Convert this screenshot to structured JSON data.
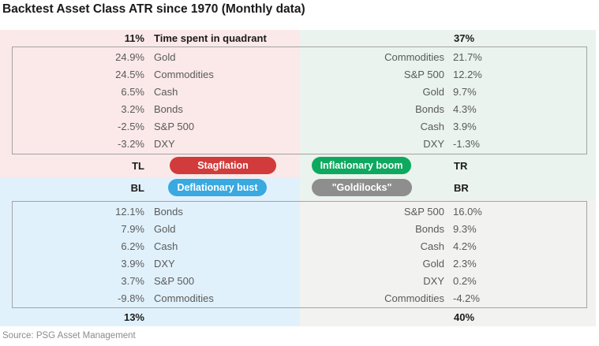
{
  "title": "Backtest Asset Class ATR since 1970 (Monthly data)",
  "source": "Source: PSG Asset Management",
  "header": {
    "left_pct": "11%",
    "label": "Time spent in quadrant",
    "right_pct": "37%"
  },
  "footer": {
    "left_pct": "13%",
    "right_pct": "40%"
  },
  "corners": {
    "tl": "TL",
    "tr": "TR",
    "bl": "BL",
    "br": "BR"
  },
  "pills": {
    "stagflation": {
      "label": "Stagflation",
      "color": "#d23b3b"
    },
    "inflationary_boom": {
      "label": "Inflationary boom",
      "color": "#0ea95f"
    },
    "deflationary_bust": {
      "label": "Deflationary bust",
      "color": "#39a9e0"
    },
    "goldilocks": {
      "label": "\"Goldilocks\"",
      "color": "#8e8e8e"
    }
  },
  "colors": {
    "tl_bg": "#fae9e8",
    "tr_bg": "#eaf3ed",
    "bl_bg": "#e1f1fc",
    "br_bg": "#f2f2f0"
  },
  "lists": {
    "tl": [
      {
        "value": "24.9%",
        "name": "Gold"
      },
      {
        "value": "24.5%",
        "name": "Commodities"
      },
      {
        "value": "6.5%",
        "name": "Cash"
      },
      {
        "value": "3.2%",
        "name": "Bonds"
      },
      {
        "value": "-2.5%",
        "name": "S&P 500"
      },
      {
        "value": "-3.2%",
        "name": "DXY"
      }
    ],
    "tr": [
      {
        "name": "Commodities",
        "value": "21.7%"
      },
      {
        "name": "S&P 500",
        "value": "12.2%"
      },
      {
        "name": "Gold",
        "value": "9.7%"
      },
      {
        "name": "Bonds",
        "value": "4.3%"
      },
      {
        "name": "Cash",
        "value": "3.9%"
      },
      {
        "name": "DXY",
        "value": "-1.3%"
      }
    ],
    "bl": [
      {
        "value": "12.1%",
        "name": "Bonds"
      },
      {
        "value": "7.9%",
        "name": "Gold"
      },
      {
        "value": "6.2%",
        "name": "Cash"
      },
      {
        "value": "3.9%",
        "name": "DXY"
      },
      {
        "value": "3.7%",
        "name": "S&P 500"
      },
      {
        "value": "-9.8%",
        "name": "Commodities"
      }
    ],
    "br": [
      {
        "name": "S&P 500",
        "value": "16.0%"
      },
      {
        "name": "Bonds",
        "value": "9.3%"
      },
      {
        "name": "Cash",
        "value": "4.2%"
      },
      {
        "name": "Gold",
        "value": "2.3%"
      },
      {
        "name": "DXY",
        "value": "0.2%"
      },
      {
        "name": "Commodities",
        "value": "-4.2%"
      }
    ]
  },
  "chart_data": {
    "type": "table",
    "title": "Backtest Asset Class ATR since 1970 (Monthly data)",
    "source": "Source: PSG Asset Management",
    "quadrants": [
      {
        "position": "TL",
        "regime": "Stagflation",
        "time_spent_in_quadrant_pct": 11,
        "returns": {
          "Gold": 24.9,
          "Commodities": 24.5,
          "Cash": 6.5,
          "Bonds": 3.2,
          "S&P 500": -2.5,
          "DXY": -3.2
        }
      },
      {
        "position": "TR",
        "regime": "Inflationary boom",
        "time_spent_in_quadrant_pct": 37,
        "returns": {
          "Commodities": 21.7,
          "S&P 500": 12.2,
          "Gold": 9.7,
          "Bonds": 4.3,
          "Cash": 3.9,
          "DXY": -1.3
        }
      },
      {
        "position": "BL",
        "regime": "Deflationary bust",
        "time_spent_in_quadrant_pct": 13,
        "returns": {
          "Bonds": 12.1,
          "Gold": 7.9,
          "Cash": 6.2,
          "DXY": 3.9,
          "S&P 500": 3.7,
          "Commodities": -9.8
        }
      },
      {
        "position": "BR",
        "regime": "\"Goldilocks\"",
        "time_spent_in_quadrant_pct": 40,
        "returns": {
          "S&P 500": 16.0,
          "Bonds": 9.3,
          "Cash": 4.2,
          "Gold": 2.3,
          "DXY": 0.2,
          "Commodities": -4.2
        }
      }
    ]
  }
}
